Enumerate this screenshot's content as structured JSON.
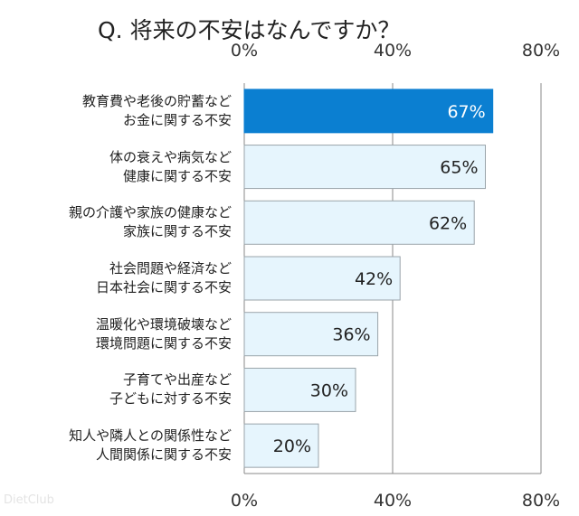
{
  "chart_data": {
    "type": "bar",
    "orientation": "horizontal",
    "title": "Q. 将来の不安はなんですか？",
    "categories": [
      [
        "教育費や老後の貯蓄など",
        "お金に関する不安"
      ],
      [
        "体の衰えや病気など",
        "健康に関する不安"
      ],
      [
        "親の介護や家族の健康など",
        "家族に関する不安"
      ],
      [
        "社会問題や経済など",
        "日本社会に関する不安"
      ],
      [
        "温暖化や環境破壊など",
        "環境問題に関する不安"
      ],
      [
        "子育てや出産など",
        "子どもに対する不安"
      ],
      [
        "知人や隣人との関係性など",
        "人間関係に関する不安"
      ]
    ],
    "values": [
      67,
      65,
      62,
      42,
      36,
      30,
      20
    ],
    "value_labels": [
      "67%",
      "65%",
      "62%",
      "42%",
      "36%",
      "30%",
      "20%"
    ],
    "xlim": [
      0,
      80
    ],
    "xticks": [
      0,
      40,
      80
    ],
    "xtick_labels": [
      "0%",
      "40%",
      "80%"
    ],
    "grid": true,
    "highlight_index": 0,
    "colors": {
      "highlight": "#0b7fd1",
      "bar": "#e6f5fd",
      "bar_border": "#9aa4aa",
      "grid": "#8a8a8a"
    }
  },
  "watermark": "DietClub"
}
